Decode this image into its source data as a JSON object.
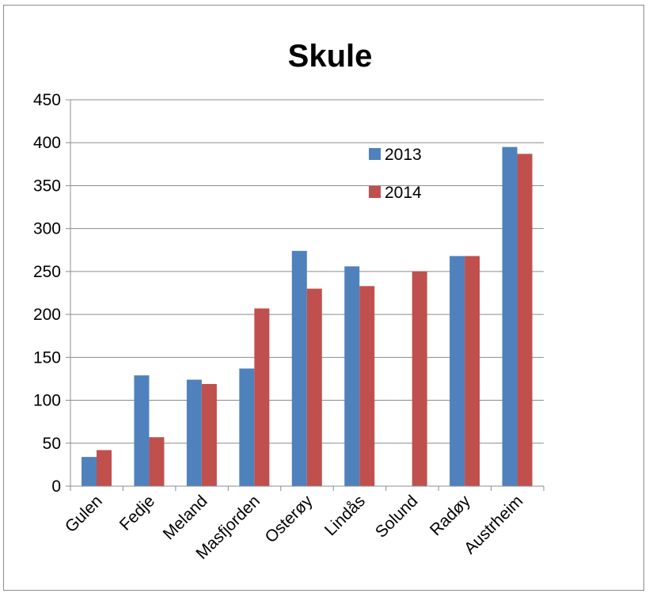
{
  "chart_data": {
    "type": "bar",
    "title": "Skule",
    "categories": [
      "Gulen",
      "Fedje",
      "Meland",
      "Masfjorden",
      "Osterøy",
      "Lindås",
      "Solund",
      "Radøy",
      "Austrheim"
    ],
    "series": [
      {
        "name": "2013",
        "color": "#4f81bd",
        "values": [
          34,
          129,
          124,
          137,
          274,
          256,
          0,
          268,
          395
        ]
      },
      {
        "name": "2014",
        "color": "#c0504d",
        "values": [
          42,
          57,
          119,
          207,
          230,
          233,
          250,
          268,
          387
        ]
      }
    ],
    "ylim": [
      0,
      450
    ],
    "yticks": [
      0,
      50,
      100,
      150,
      200,
      250,
      300,
      350,
      400,
      450
    ],
    "ytick_labels": [
      "0",
      "50",
      "100",
      "150",
      "200",
      "250",
      "300",
      "350",
      "400",
      "450"
    ],
    "grid": true,
    "legend_position": "top-right-inside"
  }
}
